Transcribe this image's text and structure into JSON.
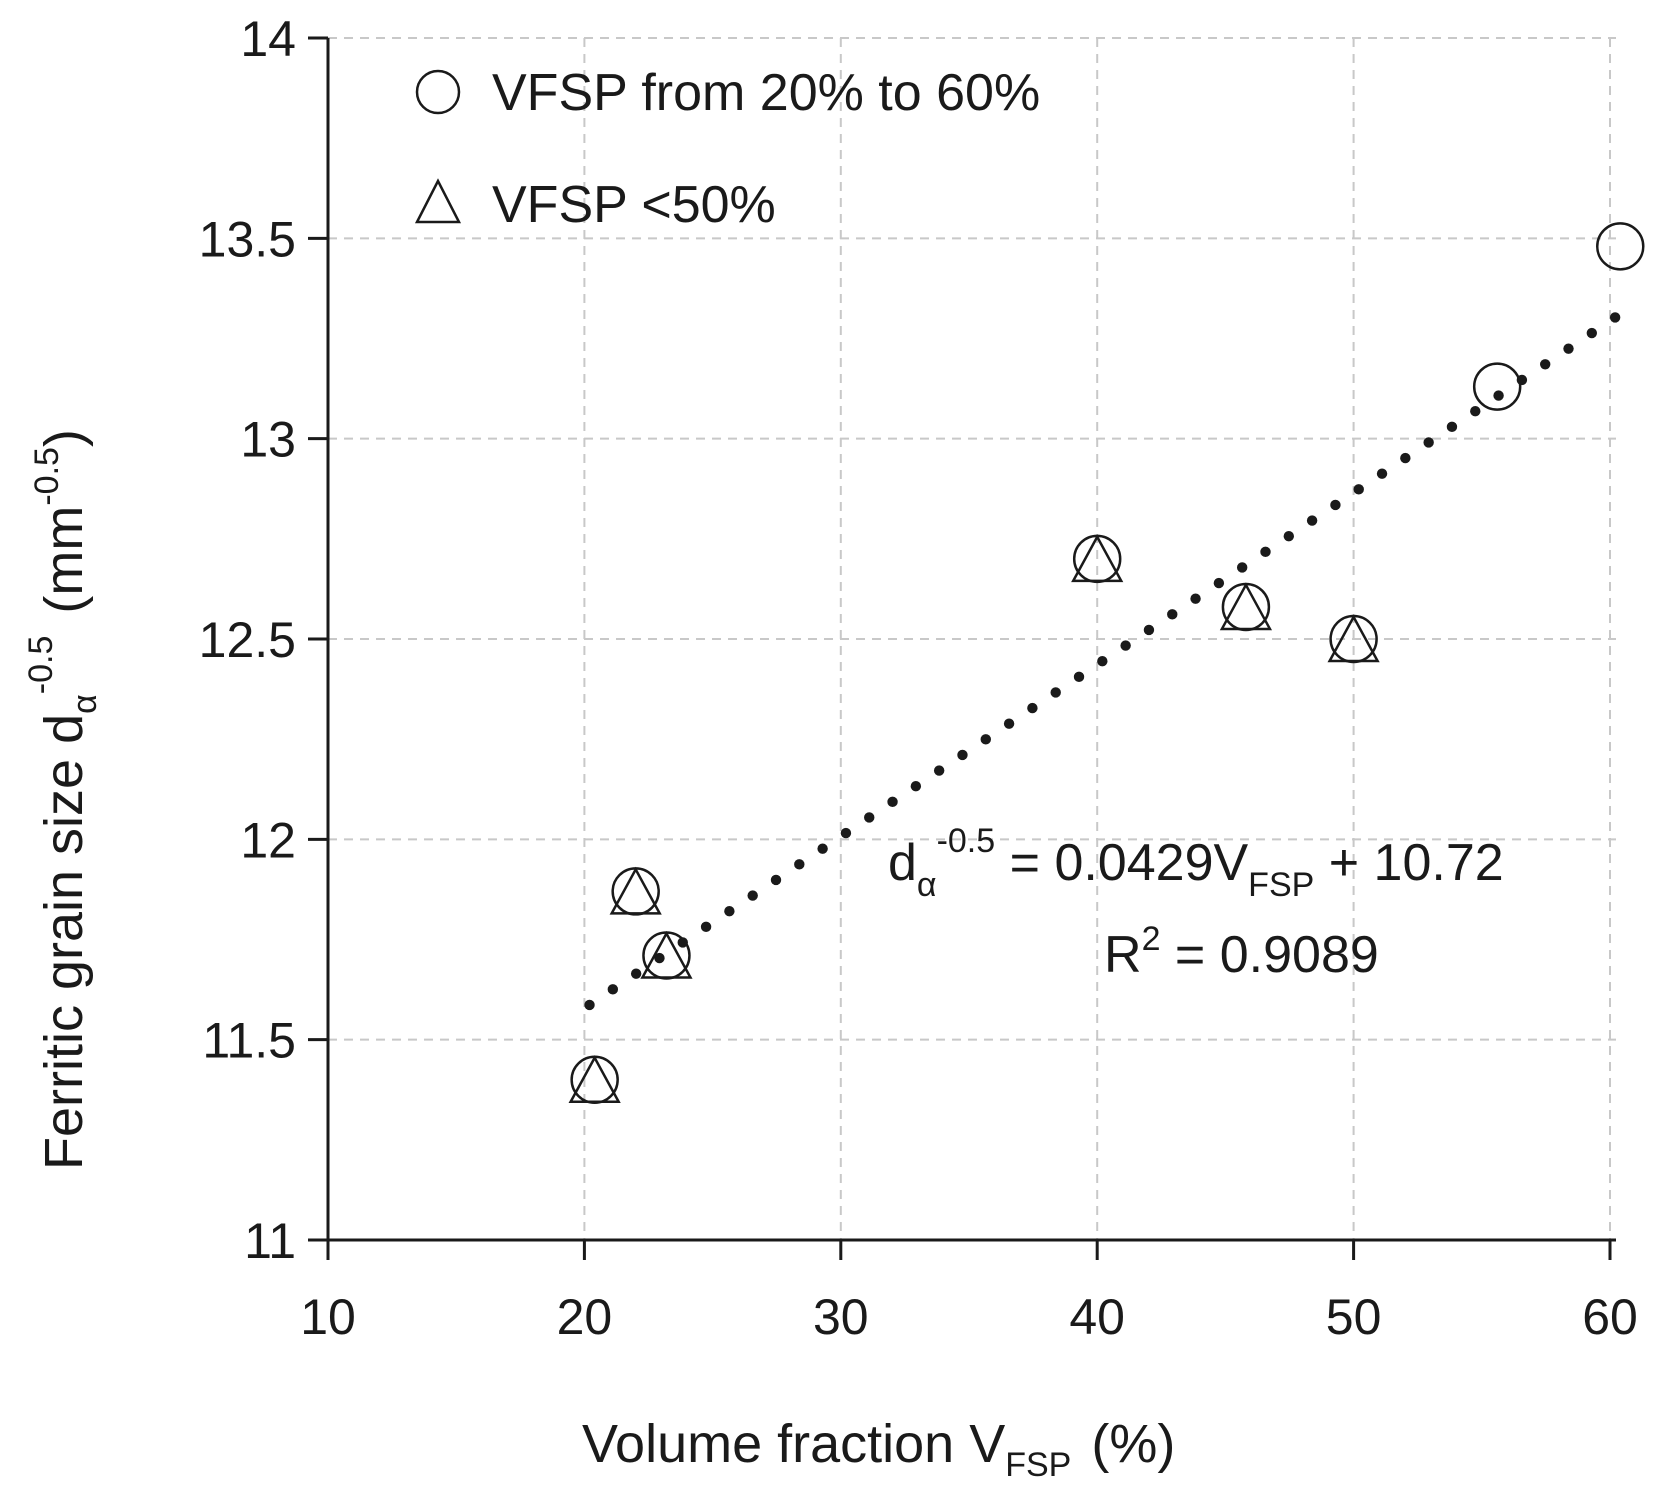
{
  "chart_data": {
    "type": "scatter",
    "xlabel": "Volume fraction V",
    "xlabel_sub": "FSP",
    "xlabel_unit": "(%)",
    "ylabel": "Ferritic grain size d",
    "ylabel_sub": "α",
    "ylabel_sup": "-0.5",
    "ylabel_unit_open": "(mm",
    "ylabel_unit_sup": "-0.5",
    "ylabel_unit_close": ")",
    "xlim": [
      10,
      60
    ],
    "ylim": [
      11,
      14
    ],
    "xticks": [
      "10",
      "20",
      "30",
      "40",
      "50",
      "60"
    ],
    "yticks": [
      "11",
      "11.5",
      "12",
      "12.5",
      "13",
      "13.5",
      "14"
    ],
    "grid": true,
    "legend_position": "top-left",
    "series": [
      {
        "name": "VFSP from 20% to 60%",
        "marker": "circle",
        "points": [
          {
            "x": 20.4,
            "y": 11.4
          },
          {
            "x": 22.0,
            "y": 11.87
          },
          {
            "x": 23.2,
            "y": 11.71
          },
          {
            "x": 40.0,
            "y": 12.7
          },
          {
            "x": 45.8,
            "y": 12.58
          },
          {
            "x": 50.0,
            "y": 12.5
          },
          {
            "x": 55.6,
            "y": 13.13
          },
          {
            "x": 60.4,
            "y": 13.48
          }
        ]
      },
      {
        "name": "VFSP <50%",
        "marker": "triangle",
        "points": [
          {
            "x": 20.4,
            "y": 11.4
          },
          {
            "x": 22.0,
            "y": 11.87
          },
          {
            "x": 23.2,
            "y": 11.71
          },
          {
            "x": 40.0,
            "y": 12.7
          },
          {
            "x": 45.8,
            "y": 12.58
          },
          {
            "x": 50.0,
            "y": 12.5
          }
        ]
      }
    ],
    "trendline": {
      "style": "dotted",
      "slope": 0.0429,
      "intercept": 10.72,
      "x_range": [
        20.2,
        60.2
      ],
      "label": "0.0429V",
      "label_sub": "FSP",
      "label_tail": " + 10.72",
      "label_lhs": "d",
      "label_lhs_sub": "α",
      "label_lhs_sup": "-0.5",
      "label_eq": " = ",
      "r2_label": "R",
      "r2_sup": "2",
      "r2_value": " = 0.9089"
    }
  }
}
